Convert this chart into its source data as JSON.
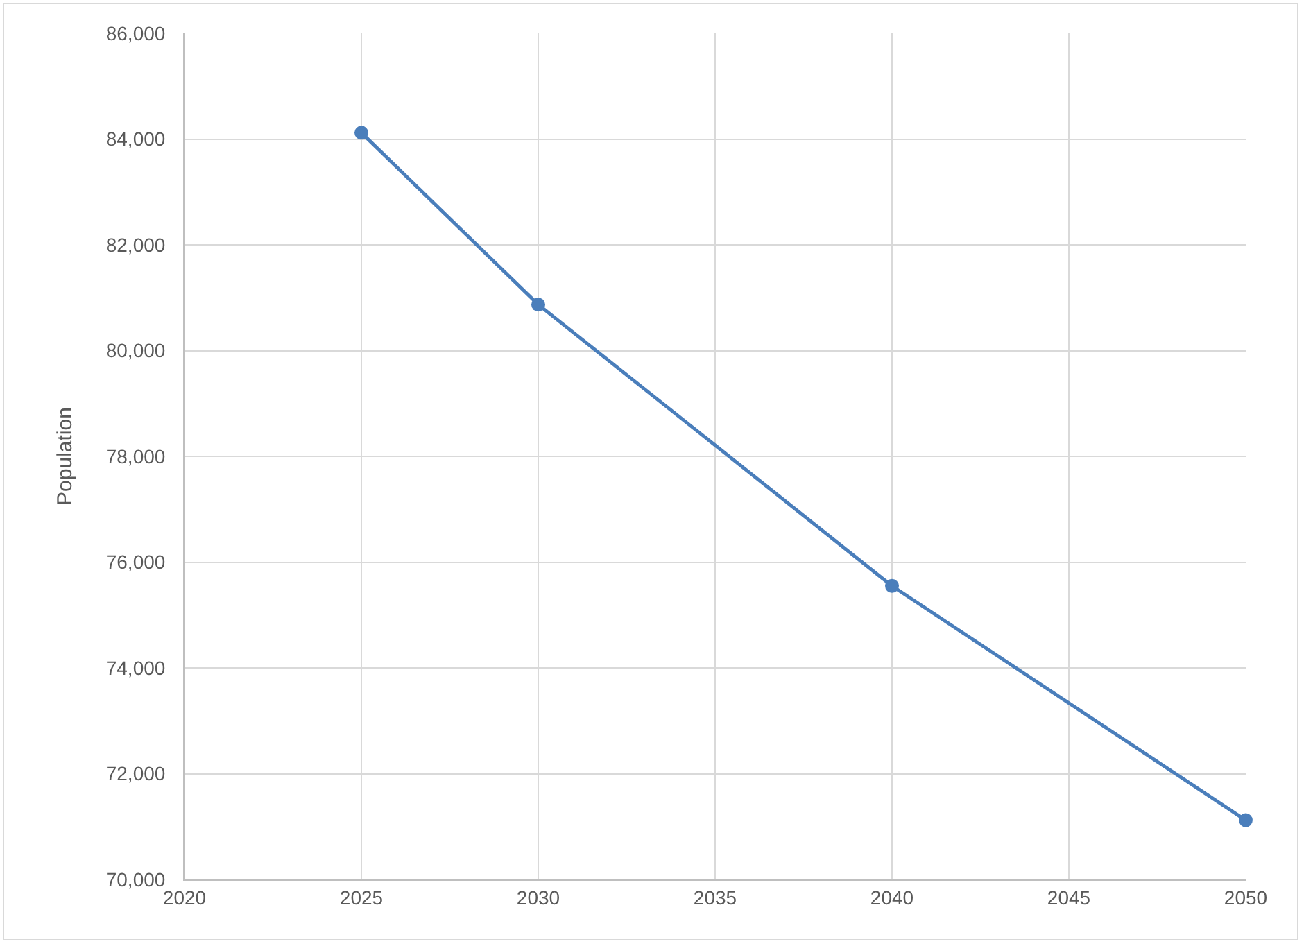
{
  "chart_data": {
    "type": "line",
    "ylabel": "Population",
    "x": [
      2025,
      2030,
      2040,
      2050
    ],
    "series": [
      {
        "color": "#4a7ebb",
        "values": [
          84120,
          80870,
          75550,
          71120
        ]
      }
    ],
    "xlim": [
      2020,
      2050
    ],
    "xticks": [
      2020,
      2025,
      2030,
      2035,
      2040,
      2045,
      2050
    ],
    "ylim": [
      70000,
      86000
    ],
    "yticks": [
      {
        "value": 70000,
        "label": "70,000"
      },
      {
        "value": 72000,
        "label": "72,000"
      },
      {
        "value": 74000,
        "label": "74,000"
      },
      {
        "value": 76000,
        "label": "76,000"
      },
      {
        "value": 78000,
        "label": "78,000"
      },
      {
        "value": 80000,
        "label": "80,000"
      },
      {
        "value": 82000,
        "label": "82,000"
      },
      {
        "value": 84000,
        "label": "84,000"
      },
      {
        "value": 86000,
        "label": "86,000"
      }
    ],
    "grid": true,
    "marker": "circle",
    "line_style": "solid"
  }
}
